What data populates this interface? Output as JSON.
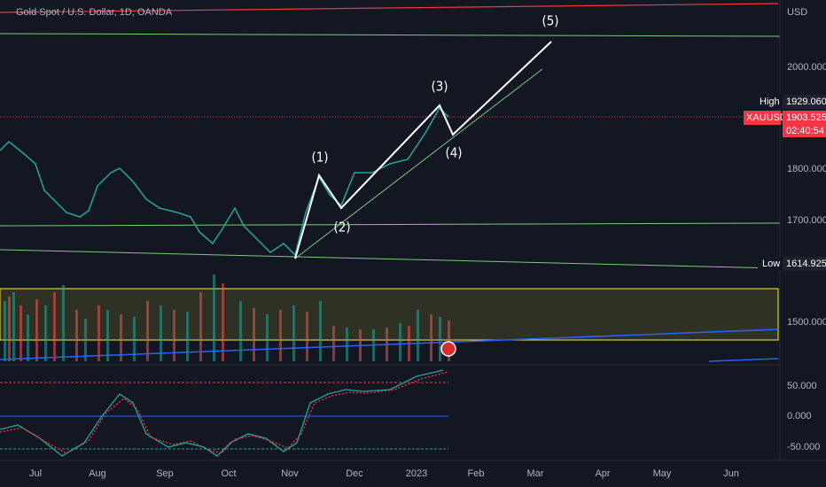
{
  "header": {
    "title": "Gold Spot / U.S. Dollar, 1D, OANDA"
  },
  "price_axis": {
    "currency": "USD",
    "labels": [
      "2000.000",
      "1800.000",
      "1700.000",
      "1500.000"
    ],
    "indicator_labels": [
      "50.000",
      "0.000",
      "-50.000"
    ]
  },
  "badges": {
    "high": {
      "label": "High",
      "value": "1929.060"
    },
    "symbol": {
      "label": "XAUUSD",
      "price": "1903.525",
      "countdown": "02:40:54"
    },
    "low": {
      "label": "Low",
      "value": "1614.925"
    }
  },
  "waves": [
    "(1)",
    "(2)",
    "(3)",
    "(4)",
    "(5)"
  ],
  "time_axis": [
    "Jul",
    "Aug",
    "Sep",
    "Oct",
    "Nov",
    "Dec",
    "2023",
    "Feb",
    "Mar",
    "Apr",
    "May",
    "Jun"
  ]
}
